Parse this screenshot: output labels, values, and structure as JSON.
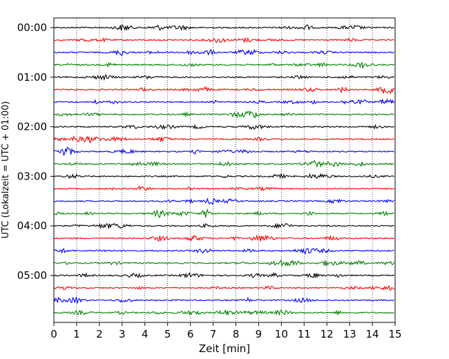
{
  "chart_data": {
    "type": "line",
    "title": "",
    "xlabel": "Zeit  [min]",
    "ylabel": "UTC (Lokalzeit = UTC + 01:00)",
    "xlim": [
      0,
      15
    ],
    "x_ticks": [
      "0",
      "1",
      "2",
      "3",
      "4",
      "5",
      "6",
      "7",
      "8",
      "9",
      "10",
      "11",
      "12",
      "13",
      "14",
      "15"
    ],
    "y_tick_labels": [
      "00:00",
      "01:00",
      "02:00",
      "03:00",
      "04:00",
      "05:00"
    ],
    "grid": "vertical dotted lines at each minute",
    "trace_interval_minutes": 15,
    "trace_count": 24,
    "trace_colors": [
      "#000000",
      "#ff0000",
      "#0000ff",
      "#008000"
    ],
    "trace_start_times": [
      "00:00",
      "00:15",
      "00:30",
      "00:45",
      "01:00",
      "01:15",
      "01:30",
      "01:45",
      "02:00",
      "02:15",
      "02:30",
      "02:45",
      "03:00",
      "03:15",
      "03:30",
      "03:45",
      "04:00",
      "04:15",
      "04:30",
      "04:45",
      "05:00",
      "05:15",
      "05:30",
      "05:45"
    ]
  }
}
